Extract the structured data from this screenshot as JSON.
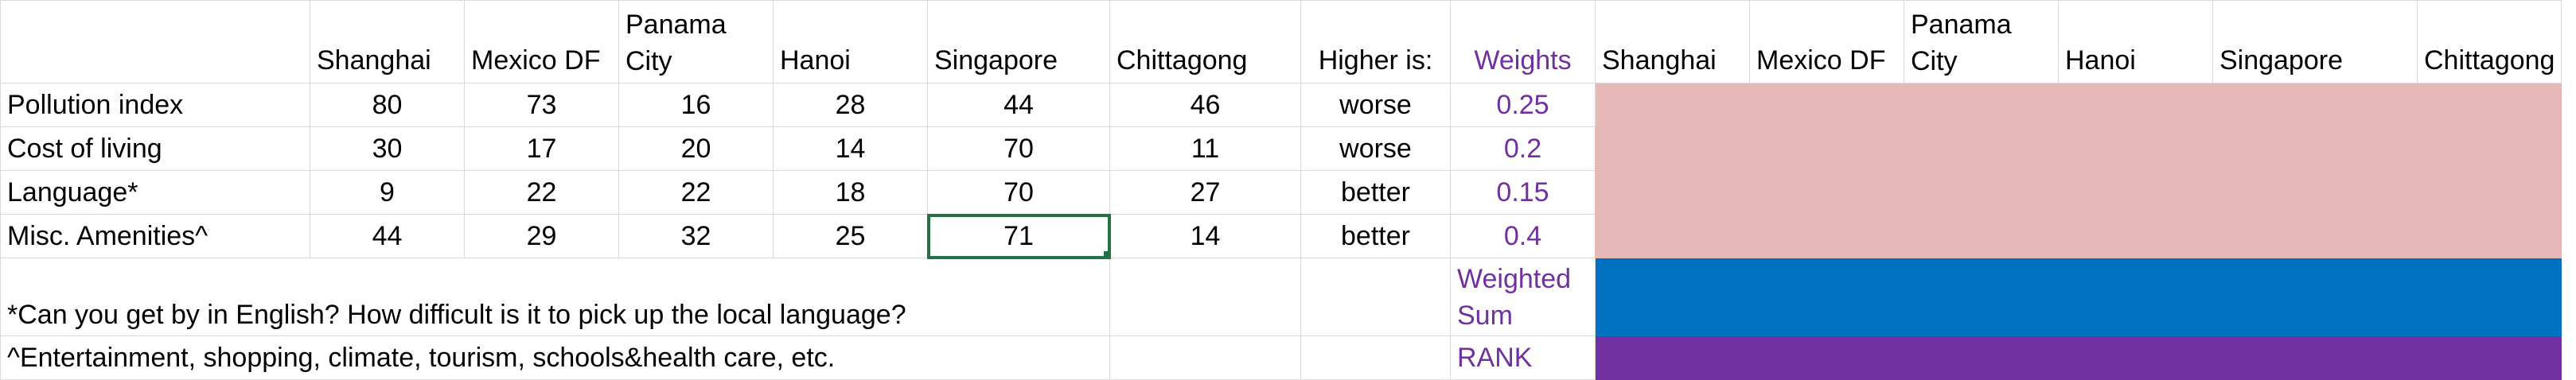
{
  "header": {
    "cities": [
      "Shanghai",
      "Mexico DF",
      "Panama City",
      "Hanoi",
      "Singapore",
      "Chittagong"
    ],
    "higher_is_label": "Higher is:",
    "weights_label": "Weights",
    "cities_right": [
      "Shanghai",
      "Mexico DF",
      "Panama City",
      "Hanoi",
      "Singapore",
      "Chittagong"
    ]
  },
  "rows": [
    {
      "label": "Pollution index",
      "values": [
        "80",
        "73",
        "16",
        "28",
        "44",
        "46"
      ],
      "higher_is": "worse",
      "weight": "0.25"
    },
    {
      "label": "Cost of living",
      "values": [
        "30",
        "17",
        "20",
        "14",
        "70",
        "11"
      ],
      "higher_is": "worse",
      "weight": "0.2"
    },
    {
      "label": "Language*",
      "values": [
        "9",
        "22",
        "22",
        "18",
        "70",
        "27"
      ],
      "higher_is": "better",
      "weight": "0.15"
    },
    {
      "label": "Misc. Amenities^",
      "values": [
        "44",
        "29",
        "32",
        "25",
        "71",
        "14"
      ],
      "higher_is": "better",
      "weight": "0.4"
    }
  ],
  "footnotes": {
    "language": "*Can you get by in English? How difficult is it to pick up the local language?",
    "amenities": "^Entertainment, shopping, climate, tourism, schools&health care, etc."
  },
  "labels": {
    "weighted_sum": "Weighted Sum",
    "rank": "RANK"
  },
  "colors": {
    "pink": "#e6b8b7",
    "blue": "#0070c0",
    "purple": "#7030a0",
    "selection": "#217346"
  }
}
